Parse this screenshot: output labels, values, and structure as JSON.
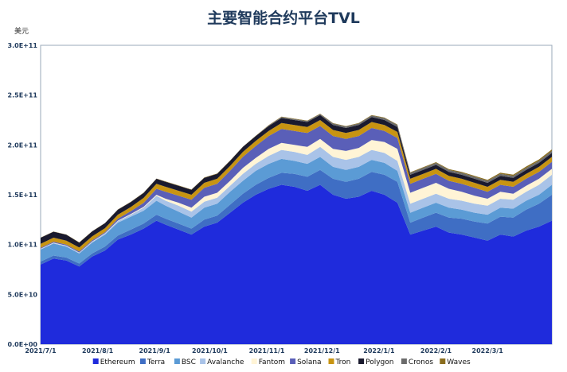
{
  "chart_data": {
    "type": "area",
    "stacked": true,
    "title": "主要智能合约平台TVL",
    "unit_label": "美元",
    "xlabel": "",
    "ylabel": "",
    "ylim": [
      0,
      300000000000
    ],
    "y_ticks": [
      "0.0E+00",
      "5.0E+10",
      "1.0E+11",
      "1.5E+11",
      "2.0E+11",
      "2.5E+11",
      "3.0E+11"
    ],
    "x_ticks": [
      "2021/7/1",
      "2021/8/1",
      "2021/9/1",
      "2021/10/1",
      "2021/11/1",
      "2021/12/1",
      "2022/1/1",
      "2022/2/1",
      "2022/3/1"
    ],
    "x_range": [
      "2021-07-01",
      "2022-04-05"
    ],
    "grid": false,
    "legend_position": "bottom",
    "x": [
      "2021-07-01",
      "2021-07-08",
      "2021-07-15",
      "2021-07-22",
      "2021-07-29",
      "2021-08-05",
      "2021-08-12",
      "2021-08-19",
      "2021-08-26",
      "2021-09-02",
      "2021-09-07",
      "2021-09-14",
      "2021-09-21",
      "2021-09-28",
      "2021-10-05",
      "2021-10-12",
      "2021-10-19",
      "2021-10-26",
      "2021-11-02",
      "2021-11-09",
      "2021-11-16",
      "2021-11-23",
      "2021-11-30",
      "2021-12-07",
      "2021-12-14",
      "2021-12-21",
      "2021-12-28",
      "2022-01-04",
      "2022-01-11",
      "2022-01-18",
      "2022-01-25",
      "2022-02-01",
      "2022-02-08",
      "2022-02-15",
      "2022-02-22",
      "2022-03-01",
      "2022-03-08",
      "2022-03-15",
      "2022-03-22",
      "2022-03-29",
      "2022-04-05"
    ],
    "series": [
      {
        "name": "Ethereum",
        "color": "#1f2bdc",
        "values": [
          80,
          86,
          84,
          78,
          88,
          94,
          105,
          110,
          116,
          124,
          120,
          115,
          110,
          118,
          122,
          132,
          142,
          150,
          156,
          160,
          158,
          154,
          160,
          150,
          146,
          148,
          154,
          150,
          142,
          110,
          114,
          118,
          112,
          110,
          107,
          104,
          110,
          108,
          114,
          118,
          124
        ]
      },
      {
        "name": "Terra",
        "color": "#3f6ec4",
        "values": [
          3,
          3,
          3,
          3,
          3,
          4,
          4,
          5,
          5,
          6,
          6,
          6,
          6,
          7,
          7,
          8,
          9,
          10,
          11,
          12,
          13,
          14,
          15,
          16,
          17,
          18,
          19,
          20,
          21,
          12,
          13,
          14,
          15,
          16,
          16,
          17,
          18,
          19,
          21,
          23,
          26
        ]
      },
      {
        "name": "BSC",
        "color": "#5b9bd5",
        "values": [
          12,
          12,
          11,
          10,
          11,
          12,
          13,
          13,
          13,
          14,
          13,
          12,
          11,
          12,
          12,
          13,
          13,
          14,
          14,
          14,
          13,
          13,
          13,
          12,
          12,
          12,
          12,
          12,
          11,
          10,
          10,
          10,
          10,
          9,
          9,
          9,
          9,
          9,
          9,
          9,
          10
        ]
      },
      {
        "name": "Avalanche",
        "color": "#a9c3e8",
        "values": [
          0.5,
          0.6,
          0.6,
          0.7,
          0.8,
          1,
          1.5,
          2,
          3,
          5,
          5,
          6,
          6,
          6,
          6,
          6,
          7,
          7,
          8,
          9,
          9,
          9,
          10,
          10,
          10,
          10,
          10,
          10,
          10,
          9,
          9,
          9,
          9,
          9,
          9,
          9,
          9,
          9,
          9,
          10,
          10
        ]
      },
      {
        "name": "Fantom",
        "color": "#fff4d6",
        "values": [
          0.3,
          0.3,
          0.3,
          0.3,
          0.4,
          0.4,
          0.5,
          0.6,
          0.8,
          1,
          2,
          3,
          4,
          5,
          5,
          5,
          6,
          6,
          7,
          7,
          7,
          8,
          8,
          8,
          9,
          9,
          10,
          11,
          12,
          11,
          11,
          11,
          10,
          9,
          8,
          7,
          7,
          6,
          6,
          6,
          6
        ]
      },
      {
        "name": "Solana",
        "color": "#5a5fb8",
        "values": [
          1,
          1,
          1,
          1,
          1,
          1,
          2,
          3,
          4,
          6,
          7,
          7,
          8,
          9,
          9,
          10,
          11,
          12,
          13,
          14,
          14,
          14,
          13,
          13,
          12,
          12,
          12,
          11,
          11,
          9,
          9,
          9,
          8,
          8,
          8,
          7,
          7,
          7,
          7,
          7,
          7
        ]
      },
      {
        "name": "Tron",
        "color": "#c89412",
        "values": [
          4,
          4,
          4,
          4,
          4,
          4,
          4,
          4,
          5,
          5,
          5,
          5,
          5,
          5,
          5,
          5,
          5,
          5,
          5,
          6,
          6,
          6,
          6,
          6,
          6,
          6,
          6,
          6,
          6,
          5,
          5,
          5,
          5,
          5,
          5,
          5,
          5,
          5,
          5,
          5,
          5
        ]
      },
      {
        "name": "Polygon",
        "color": "#1a1a2e",
        "values": [
          6,
          6,
          6,
          5,
          5,
          5,
          5,
          5,
          5,
          5,
          5,
          5,
          5,
          5,
          5,
          5,
          5,
          5,
          5,
          5,
          5,
          5,
          5,
          5,
          5,
          5,
          5,
          5,
          5,
          4,
          4,
          4,
          4,
          4,
          4,
          4,
          4,
          4,
          4,
          4,
          4
        ]
      },
      {
        "name": "Cronos",
        "color": "#6b6b6b",
        "values": [
          0,
          0,
          0,
          0,
          0,
          0,
          0,
          0,
          0,
          0,
          0,
          0,
          0,
          0,
          0,
          0,
          0,
          0,
          0.5,
          1,
          1,
          1,
          1,
          1.5,
          1.5,
          1.5,
          1.5,
          2,
          2,
          2,
          2,
          2,
          2,
          2,
          2,
          2,
          2,
          2,
          2,
          2,
          2
        ]
      },
      {
        "name": "Waves",
        "color": "#8a6d1e",
        "values": [
          0.2,
          0.2,
          0.2,
          0.2,
          0.2,
          0.2,
          0.2,
          0.3,
          0.3,
          0.3,
          0.3,
          0.3,
          0.3,
          0.3,
          0.3,
          0.3,
          0.3,
          0.3,
          0.4,
          0.4,
          0.4,
          0.4,
          0.4,
          0.4,
          0.4,
          0.5,
          0.5,
          0.5,
          0.5,
          0.5,
          0.6,
          0.7,
          0.8,
          0.9,
          1,
          1,
          1.1,
          1.2,
          1.3,
          1.4,
          1.5
        ]
      }
    ],
    "values_unit": "1E+09 USD"
  }
}
